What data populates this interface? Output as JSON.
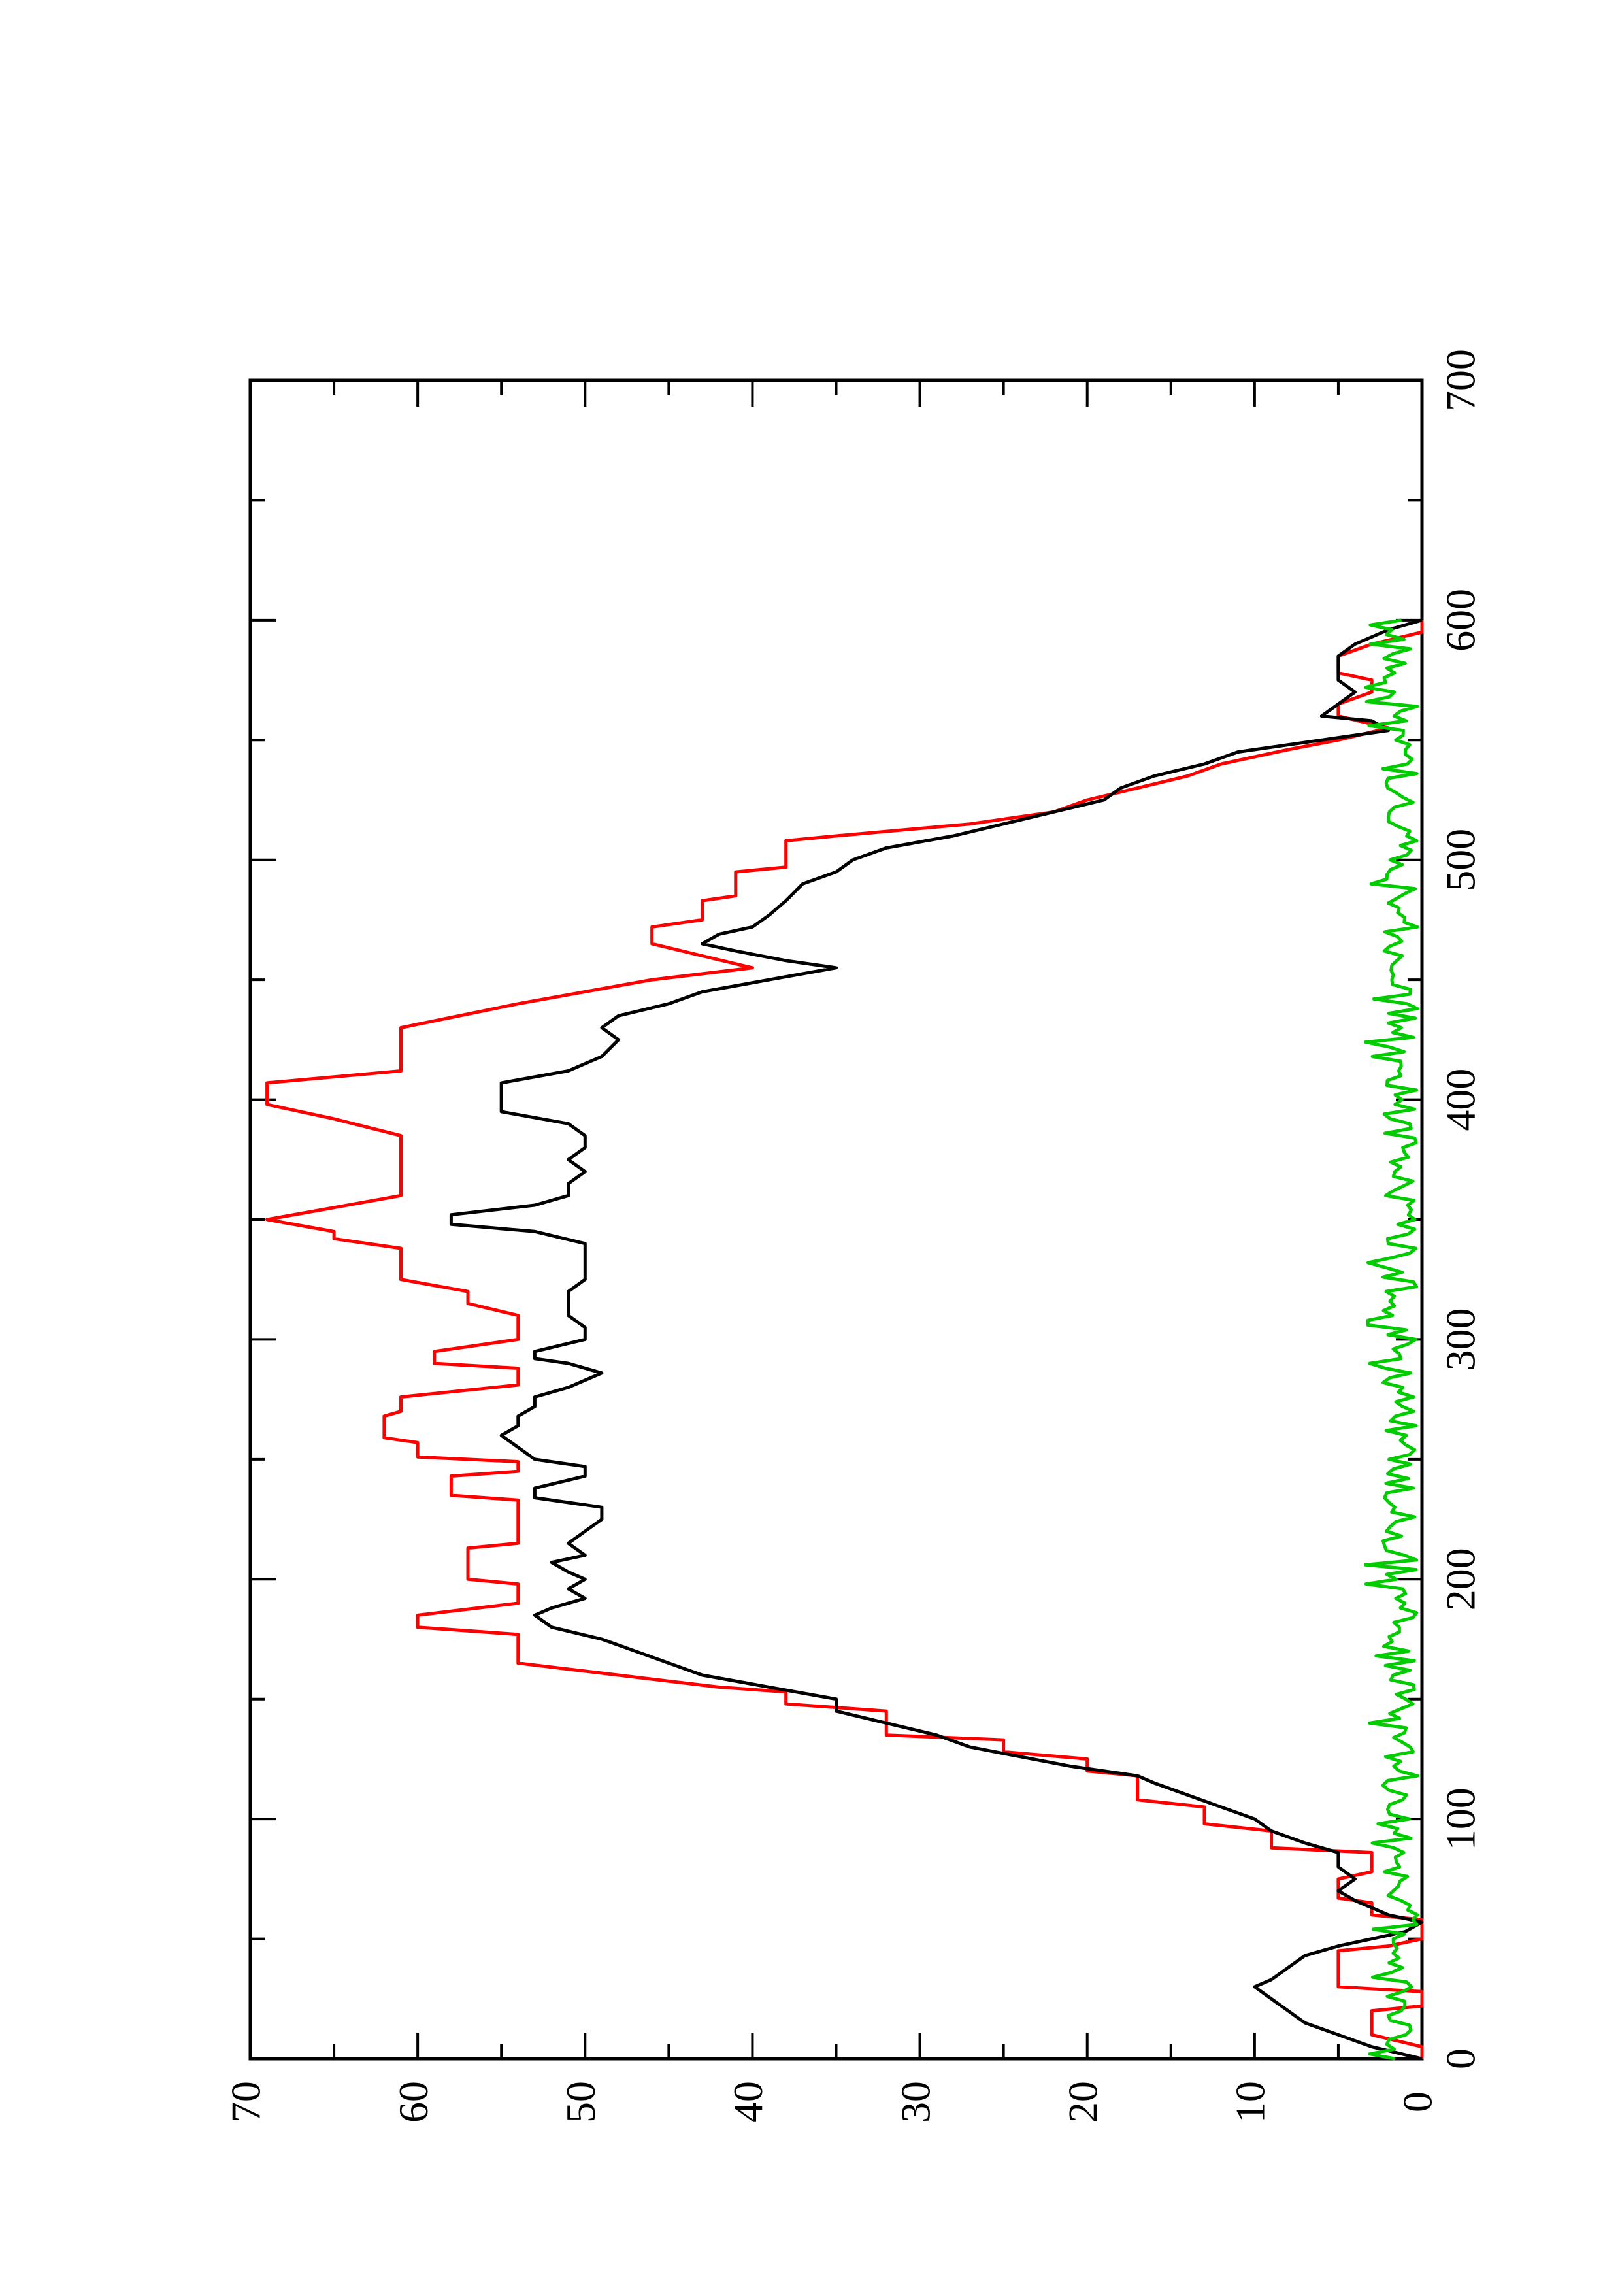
{
  "chart_data": {
    "type": "line",
    "orientation": "rotated-90-ccw",
    "title": "",
    "xlabel": "",
    "ylabel": "",
    "xlim": [
      0,
      700
    ],
    "ylim": [
      0,
      70
    ],
    "x_ticks": [
      0,
      100,
      200,
      300,
      400,
      500,
      600,
      700
    ],
    "x_tick_labels": [
      "0",
      "100",
      "200",
      "300",
      "400",
      "500",
      "600",
      "700"
    ],
    "y_ticks": [
      0,
      10,
      20,
      30,
      40,
      50,
      60,
      70
    ],
    "y_tick_labels": [
      "0",
      "10",
      "20",
      "30",
      "40",
      "50",
      "60",
      "70"
    ],
    "grid": false,
    "legend": "none",
    "series": [
      {
        "color": "#ff0000",
        "step": true,
        "points": [
          [
            0,
            0
          ],
          [
            5,
            0
          ],
          [
            10,
            3
          ],
          [
            20,
            3
          ],
          [
            22,
            0
          ],
          [
            28,
            0
          ],
          [
            30,
            5
          ],
          [
            45,
            5
          ],
          [
            47,
            2
          ],
          [
            50,
            0
          ],
          [
            58,
            0
          ],
          [
            60,
            3
          ],
          [
            65,
            3
          ],
          [
            67,
            5
          ],
          [
            75,
            5
          ],
          [
            78,
            3
          ],
          [
            86,
            3
          ],
          [
            88,
            9
          ],
          [
            95,
            9
          ],
          [
            98,
            13
          ],
          [
            105,
            13
          ],
          [
            108,
            17
          ],
          [
            118,
            17
          ],
          [
            120,
            20
          ],
          [
            125,
            20
          ],
          [
            128,
            25
          ],
          [
            133,
            25
          ],
          [
            135,
            32
          ],
          [
            145,
            32
          ],
          [
            148,
            38
          ],
          [
            153,
            38
          ],
          [
            155,
            42
          ],
          [
            165,
            54
          ],
          [
            177,
            54
          ],
          [
            180,
            60
          ],
          [
            185,
            60
          ],
          [
            190,
            54
          ],
          [
            198,
            54
          ],
          [
            200,
            57
          ],
          [
            213,
            57
          ],
          [
            215,
            54
          ],
          [
            233,
            54
          ],
          [
            235,
            58
          ],
          [
            243,
            58
          ],
          [
            245,
            54
          ],
          [
            249,
            54
          ],
          [
            251,
            60
          ],
          [
            257,
            60
          ],
          [
            259,
            62
          ],
          [
            268,
            62
          ],
          [
            270,
            61
          ],
          [
            276,
            61
          ],
          [
            281,
            54
          ],
          [
            288,
            54
          ],
          [
            290,
            59
          ],
          [
            295,
            59
          ],
          [
            300,
            54
          ],
          [
            310,
            54
          ],
          [
            315,
            57
          ],
          [
            320,
            57
          ],
          [
            325,
            61
          ],
          [
            338,
            61
          ],
          [
            342,
            65
          ],
          [
            345,
            65
          ],
          [
            350,
            69
          ],
          [
            355,
            65
          ],
          [
            360,
            61
          ],
          [
            378,
            61
          ],
          [
            385,
            61
          ],
          [
            392,
            65
          ],
          [
            398,
            69
          ],
          [
            407,
            69
          ],
          [
            412,
            61
          ],
          [
            430,
            61
          ],
          [
            440,
            54
          ],
          [
            450,
            46
          ],
          [
            455,
            40
          ],
          [
            460,
            43
          ],
          [
            465,
            46
          ],
          [
            472,
            46
          ],
          [
            475,
            43
          ],
          [
            483,
            43
          ],
          [
            485,
            41
          ],
          [
            495,
            41
          ],
          [
            497,
            38
          ],
          [
            508,
            38
          ],
          [
            510,
            35
          ],
          [
            515,
            27
          ],
          [
            520,
            22
          ],
          [
            525,
            20
          ],
          [
            530,
            17
          ],
          [
            535,
            14
          ],
          [
            540,
            12
          ],
          [
            546,
            8
          ],
          [
            550,
            5
          ],
          [
            555,
            2
          ],
          [
            560,
            5
          ],
          [
            565,
            5
          ],
          [
            570,
            3
          ],
          [
            575,
            3
          ],
          [
            578,
            5
          ],
          [
            585,
            5
          ],
          [
            590,
            3
          ],
          [
            595,
            0
          ],
          [
            600,
            0
          ]
        ]
      },
      {
        "color": "#000000",
        "step": false,
        "points": [
          [
            0,
            0
          ],
          [
            5,
            3
          ],
          [
            10,
            5
          ],
          [
            15,
            7
          ],
          [
            20,
            8
          ],
          [
            25,
            9
          ],
          [
            30,
            10
          ],
          [
            33,
            9
          ],
          [
            38,
            8
          ],
          [
            43,
            7
          ],
          [
            47,
            5
          ],
          [
            50,
            3
          ],
          [
            53,
            1
          ],
          [
            57,
            0
          ],
          [
            60,
            2
          ],
          [
            63,
            3
          ],
          [
            66,
            4
          ],
          [
            70,
            5
          ],
          [
            75,
            4
          ],
          [
            80,
            5
          ],
          [
            86,
            5
          ],
          [
            90,
            7
          ],
          [
            95,
            9
          ],
          [
            100,
            10
          ],
          [
            105,
            12
          ],
          [
            110,
            14
          ],
          [
            115,
            16
          ],
          [
            118,
            17
          ],
          [
            122,
            21
          ],
          [
            126,
            24
          ],
          [
            130,
            27
          ],
          [
            135,
            29
          ],
          [
            140,
            32
          ],
          [
            145,
            35
          ],
          [
            150,
            35
          ],
          [
            155,
            39
          ],
          [
            160,
            43
          ],
          [
            165,
            45
          ],
          [
            170,
            47
          ],
          [
            175,
            49
          ],
          [
            180,
            52
          ],
          [
            185,
            53
          ],
          [
            188,
            52
          ],
          [
            192,
            50
          ],
          [
            196,
            51
          ],
          [
            200,
            50
          ],
          [
            203,
            51
          ],
          [
            207,
            52
          ],
          [
            210,
            50
          ],
          [
            215,
            51
          ],
          [
            220,
            50
          ],
          [
            225,
            49
          ],
          [
            230,
            49
          ],
          [
            234,
            53
          ],
          [
            238,
            53
          ],
          [
            243,
            50
          ],
          [
            247,
            50
          ],
          [
            250,
            53
          ],
          [
            255,
            54
          ],
          [
            260,
            55
          ],
          [
            264,
            54
          ],
          [
            268,
            54
          ],
          [
            272,
            53
          ],
          [
            276,
            53
          ],
          [
            280,
            51
          ],
          [
            286,
            49
          ],
          [
            290,
            51
          ],
          [
            292,
            53
          ],
          [
            295,
            53
          ],
          [
            300,
            50
          ],
          [
            305,
            50
          ],
          [
            310,
            51
          ],
          [
            315,
            51
          ],
          [
            320,
            51
          ],
          [
            325,
            50
          ],
          [
            330,
            50
          ],
          [
            335,
            50
          ],
          [
            340,
            50
          ],
          [
            345,
            53
          ],
          [
            348,
            58
          ],
          [
            352,
            58
          ],
          [
            356,
            53
          ],
          [
            360,
            51
          ],
          [
            365,
            51
          ],
          [
            370,
            50
          ],
          [
            375,
            51
          ],
          [
            380,
            50
          ],
          [
            385,
            50
          ],
          [
            390,
            51
          ],
          [
            395,
            55
          ],
          [
            402,
            55
          ],
          [
            407,
            55
          ],
          [
            412,
            51
          ],
          [
            418,
            49
          ],
          [
            425,
            48
          ],
          [
            430,
            49
          ],
          [
            435,
            48
          ],
          [
            440,
            45
          ],
          [
            445,
            43
          ],
          [
            450,
            39
          ],
          [
            455,
            35
          ],
          [
            458,
            38
          ],
          [
            462,
            41
          ],
          [
            465,
            43
          ],
          [
            469,
            42
          ],
          [
            472,
            40
          ],
          [
            477,
            39
          ],
          [
            483,
            38
          ],
          [
            490,
            37
          ],
          [
            495,
            35
          ],
          [
            500,
            34
          ],
          [
            505,
            32
          ],
          [
            510,
            28
          ],
          [
            515,
            25
          ],
          [
            520,
            22
          ],
          [
            525,
            19
          ],
          [
            530,
            18
          ],
          [
            535,
            16
          ],
          [
            540,
            13
          ],
          [
            545,
            11
          ],
          [
            550,
            6
          ],
          [
            554,
            2
          ],
          [
            558,
            3
          ],
          [
            560,
            6
          ],
          [
            565,
            5
          ],
          [
            570,
            4
          ],
          [
            575,
            5
          ],
          [
            580,
            5
          ],
          [
            585,
            5
          ],
          [
            590,
            4
          ],
          [
            593,
            3
          ],
          [
            596,
            2
          ],
          [
            600,
            0
          ]
        ]
      },
      {
        "color": "#00cc00",
        "step": false,
        "noise": true,
        "xrange": [
          0,
          600
        ],
        "level": [
          0,
          3.4
        ],
        "typical": 1.3
      }
    ]
  }
}
